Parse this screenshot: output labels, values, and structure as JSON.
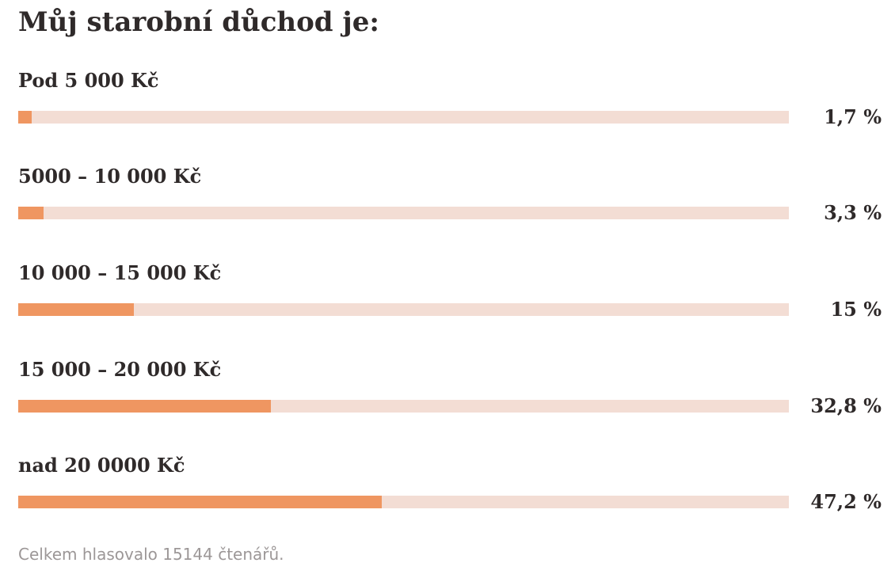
{
  "chart_data": {
    "type": "bar",
    "orientation": "horizontal",
    "title": "Můj starobní důchod je:",
    "categories": [
      "Pod 5 000 Kč",
      "5000 – 10 000 Kč",
      "10 000 – 15 000 Kč",
      "15 000 – 20 000 Kč",
      "nad 20 0000 Kč"
    ],
    "values": [
      1.7,
      3.3,
      15,
      32.8,
      47.2
    ],
    "value_labels": [
      "1,7 %",
      "3,3 %",
      "15 %",
      "32,8 %",
      "47,2 %"
    ],
    "ylim": [
      0,
      100
    ],
    "grid": false,
    "colors": {
      "fill": "#ef9661",
      "track": "#f3ddd4",
      "text": "#2f2a2a",
      "footer": "#9c9797"
    }
  },
  "footer": {
    "text": "Celkem hlasovalo 15144 čtenářů."
  }
}
